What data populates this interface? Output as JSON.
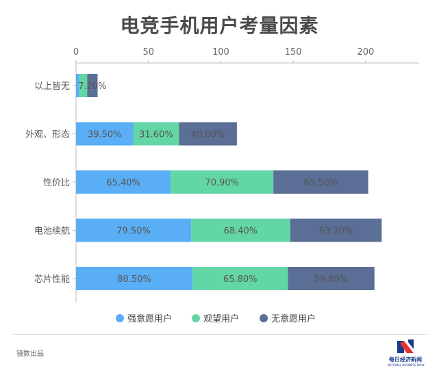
{
  "chart_data": {
    "type": "bar",
    "orientation": "horizontal",
    "stacked": true,
    "title": "电竞手机用户考量因素",
    "categories": [
      "以上皆无",
      "外观、形态",
      "性价比",
      "电池续航",
      "芯片性能"
    ],
    "series": [
      {
        "name": "强意愿用户",
        "values": [
          2.2,
          39.5,
          65.4,
          79.5,
          80.5
        ],
        "labels": [
          "",
          "39.50%",
          "65.40%",
          "79.50%",
          "80.50%"
        ],
        "color": "#5aaef5"
      },
      {
        "name": "观望用户",
        "values": [
          5.5,
          31.6,
          70.9,
          68.4,
          65.8
        ],
        "labels": [
          "",
          "31.60%",
          "70.90%",
          "68.40%",
          "65.80%"
        ],
        "color": "#63d6a6"
      },
      {
        "name": "无意愿用户",
        "values": [
          7.2,
          40.0,
          65.5,
          63.2,
          59.8
        ],
        "labels": [
          "7.20%",
          "40.00%",
          "65.50%",
          "63.20%",
          "59.80%"
        ],
        "color": "#5b6e96"
      }
    ],
    "x_ticks": [
      0,
      50,
      100,
      150,
      200
    ],
    "xlim": [
      0,
      210
    ],
    "axis_position": "top",
    "grid": false,
    "legend": "bottom"
  },
  "footer": {
    "source": "镜数出品",
    "logo_cn": "每日经济新闻",
    "logo_en": "NATIONAL BUSINESS DAILY",
    "logo_color": "#1a3a8a",
    "logo_accent": "#e8303a"
  }
}
